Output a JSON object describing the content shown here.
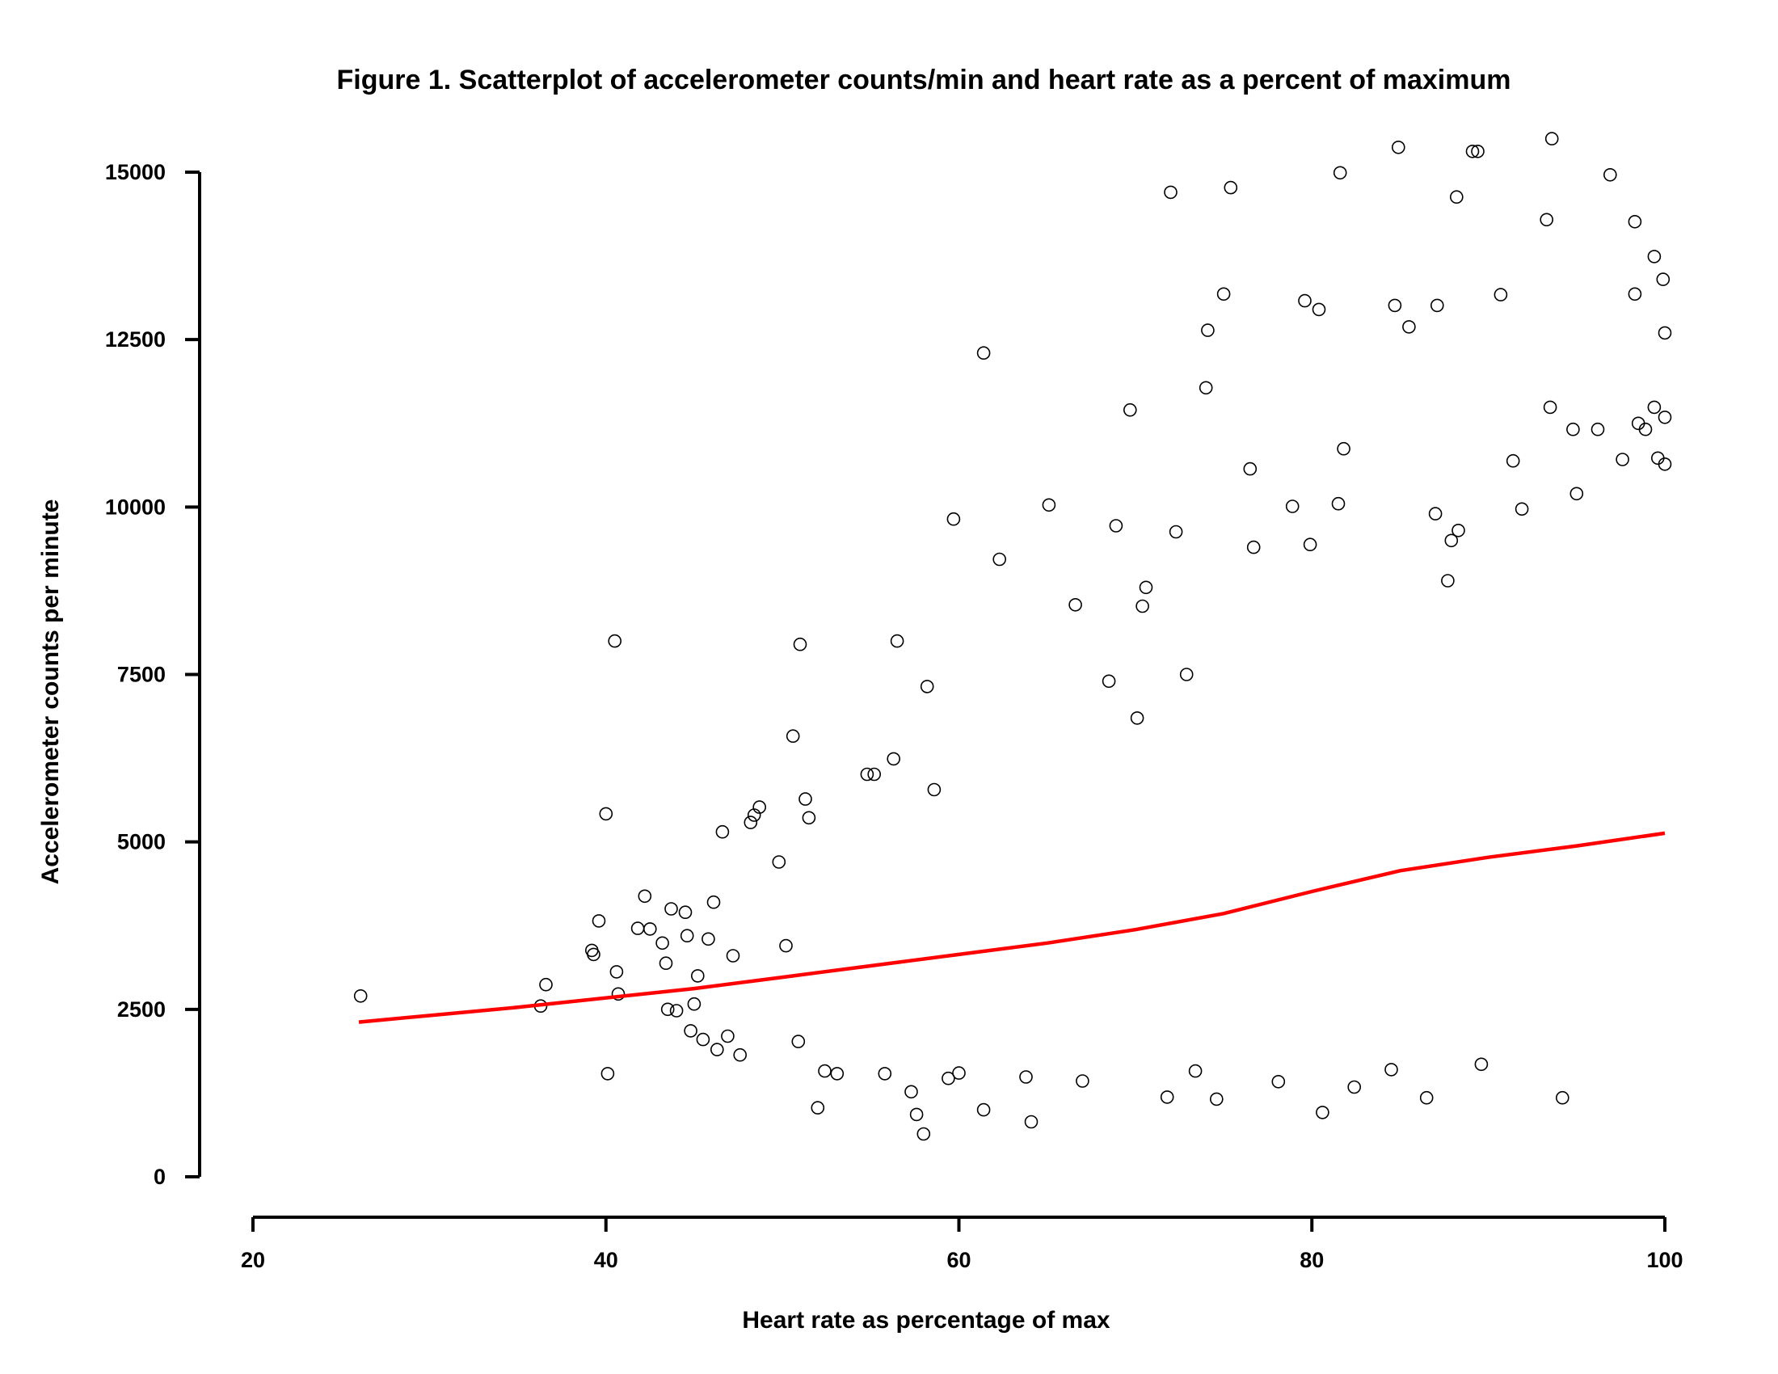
{
  "chart_data": {
    "type": "scatter",
    "title": "Figure 1. Scatterplot of accelerometer counts/min and heart rate as a percent of maximum",
    "xlabel": "Heart rate as percentage of max",
    "ylabel": "Accelerometer counts per minute",
    "xlim": [
      20,
      100
    ],
    "ylim": [
      0,
      15000
    ],
    "x_ticks": [
      "20",
      "40",
      "60",
      "80",
      "100"
    ],
    "y_ticks": [
      "0",
      "2500",
      "5000",
      "7500",
      "10000",
      "12500",
      "15000"
    ],
    "grid": false,
    "legend": "none",
    "point_style": "open-circle",
    "point_color": "#000000",
    "series": [
      {
        "points": [
          [
            26.1,
            2700
          ],
          [
            36.3,
            2550
          ],
          [
            36.6,
            2870
          ],
          [
            39.2,
            3380
          ],
          [
            39.3,
            3320
          ],
          [
            39.6,
            3820
          ],
          [
            40.0,
            5420
          ],
          [
            40.1,
            1540
          ],
          [
            40.5,
            8000
          ],
          [
            40.6,
            3060
          ],
          [
            40.7,
            2730
          ],
          [
            41.8,
            3710
          ],
          [
            42.2,
            4190
          ],
          [
            42.5,
            3700
          ],
          [
            43.2,
            3490
          ],
          [
            43.4,
            3190
          ],
          [
            43.5,
            2500
          ],
          [
            43.7,
            4000
          ],
          [
            44.0,
            2480
          ],
          [
            44.5,
            3950
          ],
          [
            44.6,
            3600
          ],
          [
            44.8,
            2180
          ],
          [
            45.0,
            2580
          ],
          [
            45.2,
            3000
          ],
          [
            45.5,
            2050
          ],
          [
            45.8,
            3550
          ],
          [
            46.1,
            4100
          ],
          [
            46.3,
            1900
          ],
          [
            46.6,
            5150
          ],
          [
            46.9,
            2100
          ],
          [
            47.2,
            3300
          ],
          [
            47.6,
            1820
          ],
          [
            48.2,
            5290
          ],
          [
            48.4,
            5400
          ],
          [
            48.7,
            5520
          ],
          [
            49.8,
            4700
          ],
          [
            50.2,
            3450
          ],
          [
            50.6,
            6580
          ],
          [
            50.9,
            2020
          ],
          [
            51.0,
            7950
          ],
          [
            51.3,
            5640
          ],
          [
            51.5,
            5360
          ],
          [
            52.0,
            1030
          ],
          [
            52.4,
            1580
          ],
          [
            53.1,
            1540
          ],
          [
            54.8,
            6010
          ],
          [
            55.2,
            6010
          ],
          [
            55.8,
            1540
          ],
          [
            56.3,
            6240
          ],
          [
            56.5,
            8000
          ],
          [
            57.3,
            1270
          ],
          [
            57.6,
            930
          ],
          [
            58.0,
            640
          ],
          [
            58.2,
            7320
          ],
          [
            58.6,
            5780
          ],
          [
            59.4,
            1470
          ],
          [
            59.7,
            9820
          ],
          [
            60.0,
            1550
          ],
          [
            61.4,
            12300
          ],
          [
            61.4,
            1000
          ],
          [
            62.3,
            9220
          ],
          [
            63.8,
            1490
          ],
          [
            64.1,
            820
          ],
          [
            65.1,
            10030
          ],
          [
            66.6,
            8540
          ],
          [
            67.0,
            1430
          ],
          [
            68.5,
            7400
          ],
          [
            68.9,
            9720
          ],
          [
            69.7,
            11450
          ],
          [
            70.1,
            6850
          ],
          [
            70.4,
            8520
          ],
          [
            70.6,
            8800
          ],
          [
            71.8,
            1190
          ],
          [
            72.0,
            14700
          ],
          [
            72.3,
            9630
          ],
          [
            72.9,
            7500
          ],
          [
            73.4,
            1580
          ],
          [
            74.0,
            11780
          ],
          [
            74.1,
            12640
          ],
          [
            74.6,
            1160
          ],
          [
            75.0,
            13180
          ],
          [
            75.4,
            14770
          ],
          [
            76.5,
            10570
          ],
          [
            76.7,
            9400
          ],
          [
            78.1,
            1420
          ],
          [
            78.9,
            10010
          ],
          [
            79.6,
            13080
          ],
          [
            79.9,
            9440
          ],
          [
            80.4,
            12950
          ],
          [
            80.6,
            960
          ],
          [
            81.5,
            10050
          ],
          [
            81.6,
            14990
          ],
          [
            81.8,
            10870
          ],
          [
            82.4,
            1340
          ],
          [
            84.5,
            1600
          ],
          [
            84.7,
            13010
          ],
          [
            84.9,
            15370
          ],
          [
            85.5,
            12690
          ],
          [
            86.5,
            1180
          ],
          [
            87.0,
            9900
          ],
          [
            87.1,
            13010
          ],
          [
            87.7,
            8900
          ],
          [
            87.9,
            9500
          ],
          [
            88.2,
            14630
          ],
          [
            88.3,
            9650
          ],
          [
            89.1,
            15310
          ],
          [
            89.4,
            15310
          ],
          [
            89.6,
            1680
          ],
          [
            90.7,
            13170
          ],
          [
            91.4,
            10690
          ],
          [
            91.9,
            9970
          ],
          [
            93.3,
            14290
          ],
          [
            93.5,
            11490
          ],
          [
            93.6,
            15500
          ],
          [
            94.2,
            1180
          ],
          [
            94.8,
            11160
          ],
          [
            95.0,
            10200
          ],
          [
            96.2,
            11160
          ],
          [
            96.9,
            14960
          ],
          [
            97.6,
            10710
          ],
          [
            98.3,
            14260
          ],
          [
            98.3,
            13180
          ],
          [
            98.5,
            11250
          ],
          [
            98.9,
            11160
          ],
          [
            99.4,
            13740
          ],
          [
            99.4,
            11490
          ],
          [
            99.6,
            10730
          ],
          [
            99.9,
            13400
          ],
          [
            100.0,
            12600
          ],
          [
            100.0,
            11340
          ],
          [
            100.0,
            10640
          ]
        ]
      }
    ],
    "fit_line": {
      "color": "#ff0000",
      "points": [
        [
          26,
          2310
        ],
        [
          35,
          2530
        ],
        [
          45,
          2810
        ],
        [
          50,
          2980
        ],
        [
          55,
          3150
        ],
        [
          60,
          3320
        ],
        [
          65,
          3490
        ],
        [
          70,
          3690
        ],
        [
          75,
          3930
        ],
        [
          80,
          4260
        ],
        [
          85,
          4570
        ],
        [
          90,
          4770
        ],
        [
          95,
          4940
        ],
        [
          100,
          5130
        ]
      ]
    }
  }
}
